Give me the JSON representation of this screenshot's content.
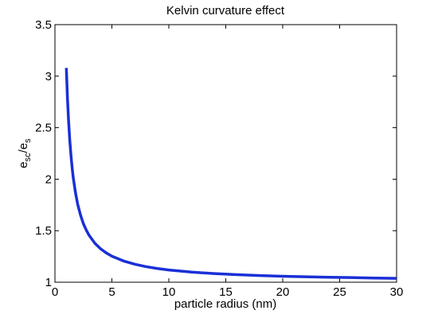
{
  "chart_data": {
    "type": "line",
    "title": "Kelvin curvature effect",
    "xlabel": "particle radius (nm)",
    "ylabel": {
      "base1": "e",
      "sub1": "sc",
      "sep": "/e",
      "sub2": "s"
    },
    "xlim": [
      0,
      30
    ],
    "ylim": [
      1,
      3.5
    ],
    "xticks": [
      0,
      5,
      10,
      15,
      20,
      25,
      30
    ],
    "xtick_labels": [
      "0",
      "5",
      "10",
      "15",
      "20",
      "25",
      "30"
    ],
    "yticks": [
      1,
      1.5,
      2,
      2.5,
      3,
      3.5
    ],
    "ytick_labels": [
      "1",
      "1.5",
      "2",
      "2.5",
      "3",
      "3.5"
    ],
    "grid": false,
    "series": [
      {
        "color": "#1a2fd6",
        "x": [
          1.0,
          1.1,
          1.2,
          1.3,
          1.4,
          1.5,
          1.6,
          1.8,
          2.0,
          2.25,
          2.5,
          2.75,
          3.0,
          3.5,
          4.0,
          4.5,
          5.0,
          6.0,
          7.0,
          8.0,
          9.0,
          10.0,
          12.0,
          14.0,
          16.0,
          18.0,
          20.0,
          22.0,
          24.0,
          26.0,
          28.0,
          30.0
        ],
        "y": [
          3.08,
          2.78,
          2.56,
          2.38,
          2.24,
          2.12,
          2.02,
          1.87,
          1.755,
          1.65,
          1.567,
          1.506,
          1.455,
          1.379,
          1.325,
          1.285,
          1.253,
          1.207,
          1.175,
          1.151,
          1.133,
          1.119,
          1.098,
          1.084,
          1.073,
          1.065,
          1.058,
          1.053,
          1.048,
          1.045,
          1.041,
          1.038
        ]
      }
    ]
  }
}
